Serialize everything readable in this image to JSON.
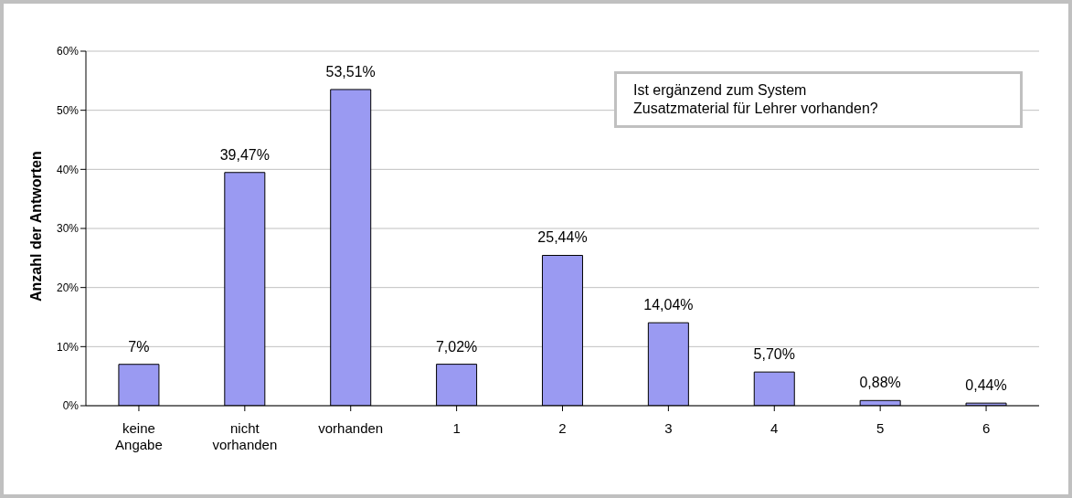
{
  "chart_data": {
    "type": "bar",
    "title": "Ist ergänzend zum System\nZusatzmaterial für Lehrer vorhanden?",
    "ylabel": "Anzahl der Antworten",
    "categories": [
      "keine Angabe",
      "nicht vorhanden",
      "vorhanden",
      "1",
      "2",
      "3",
      "4",
      "5",
      "6"
    ],
    "values": [
      7,
      39.47,
      53.51,
      7.02,
      25.44,
      14.04,
      5.7,
      0.88,
      0.44
    ],
    "value_labels": [
      "7%",
      "39,47%",
      "53,51%",
      "7,02%",
      "25,44%",
      "14,04%",
      "5,70%",
      "0,88%",
      "0,44%"
    ],
    "color": "#9a9af2",
    "ylim": [
      0,
      60
    ],
    "yticks": [
      {
        "value": 0,
        "label": "0%"
      },
      {
        "value": 10,
        "label": "10%"
      },
      {
        "value": 20,
        "label": "20%"
      },
      {
        "value": 30,
        "label": "30%"
      },
      {
        "value": 40,
        "label": "40%"
      },
      {
        "value": 50,
        "label": "50%"
      },
      {
        "value": 60,
        "label": "60%"
      }
    ],
    "grid": "y"
  }
}
